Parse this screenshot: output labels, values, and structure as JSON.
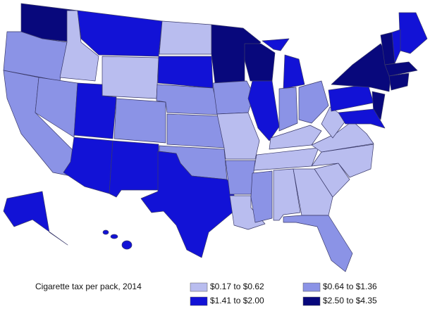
{
  "title": "Cigarette tax per pack, 2014",
  "legend": [
    {
      "label": "$0.17 to $0.62",
      "color": "#b9bdef"
    },
    {
      "label": "$0.64 to $1.36",
      "color": "#8b93e6"
    },
    {
      "label": "$1.41 to $2.00",
      "color": "#1212d6"
    },
    {
      "label": "$2.50 to $4.35",
      "color": "#08087c"
    }
  ]
}
